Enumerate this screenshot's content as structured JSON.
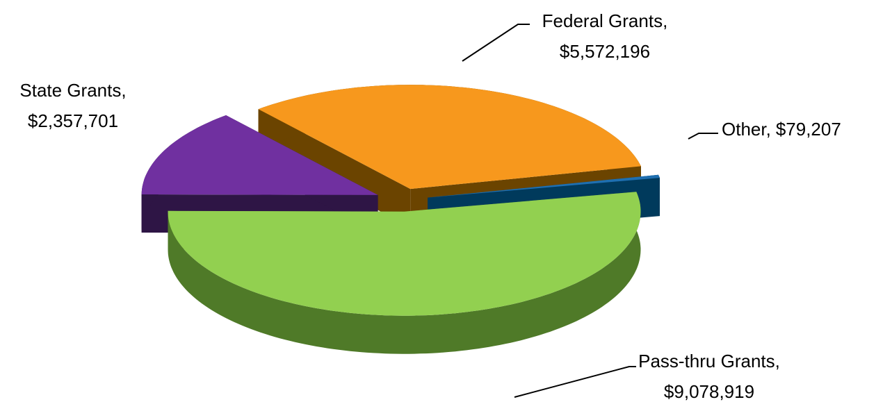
{
  "chart_data": {
    "type": "pie",
    "categories": [
      "Federal Grants",
      "Other",
      "Pass-thru Grants",
      "State Grants"
    ],
    "values": [
      5572196,
      79207,
      9078919,
      2357701
    ],
    "value_labels": [
      "$5,572,196",
      "$79,207",
      "$9,078,919",
      "$2,357,701"
    ],
    "label_separator": ",",
    "colors": [
      "#f7981d",
      "#1f6fb0",
      "#92d050",
      "#7030a0"
    ],
    "side_colors": [
      "#6b4400",
      "#003a5c",
      "#4f7a28",
      "#2e1545"
    ]
  }
}
